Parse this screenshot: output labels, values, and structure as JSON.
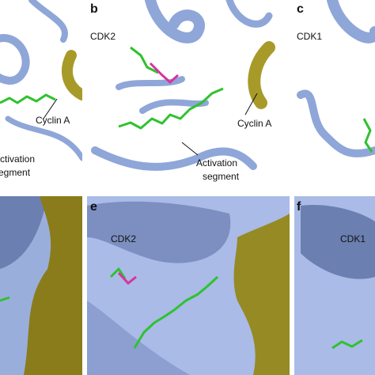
{
  "panel_a": {
    "cyclin": "Cyclin A",
    "segment": [
      "Activation",
      "segment"
    ]
  },
  "panel_b": {
    "letter": "b",
    "protein": "CDK2",
    "cyclin": "Cyclin A",
    "segment": [
      "Activation",
      "segment"
    ]
  },
  "panel_c": {
    "letter": "c",
    "protein": "CDK1"
  },
  "panel_e": {
    "letter": "e",
    "protein": "CDK2"
  },
  "panel_f": {
    "letter": "f",
    "protein": "CDK1"
  }
}
